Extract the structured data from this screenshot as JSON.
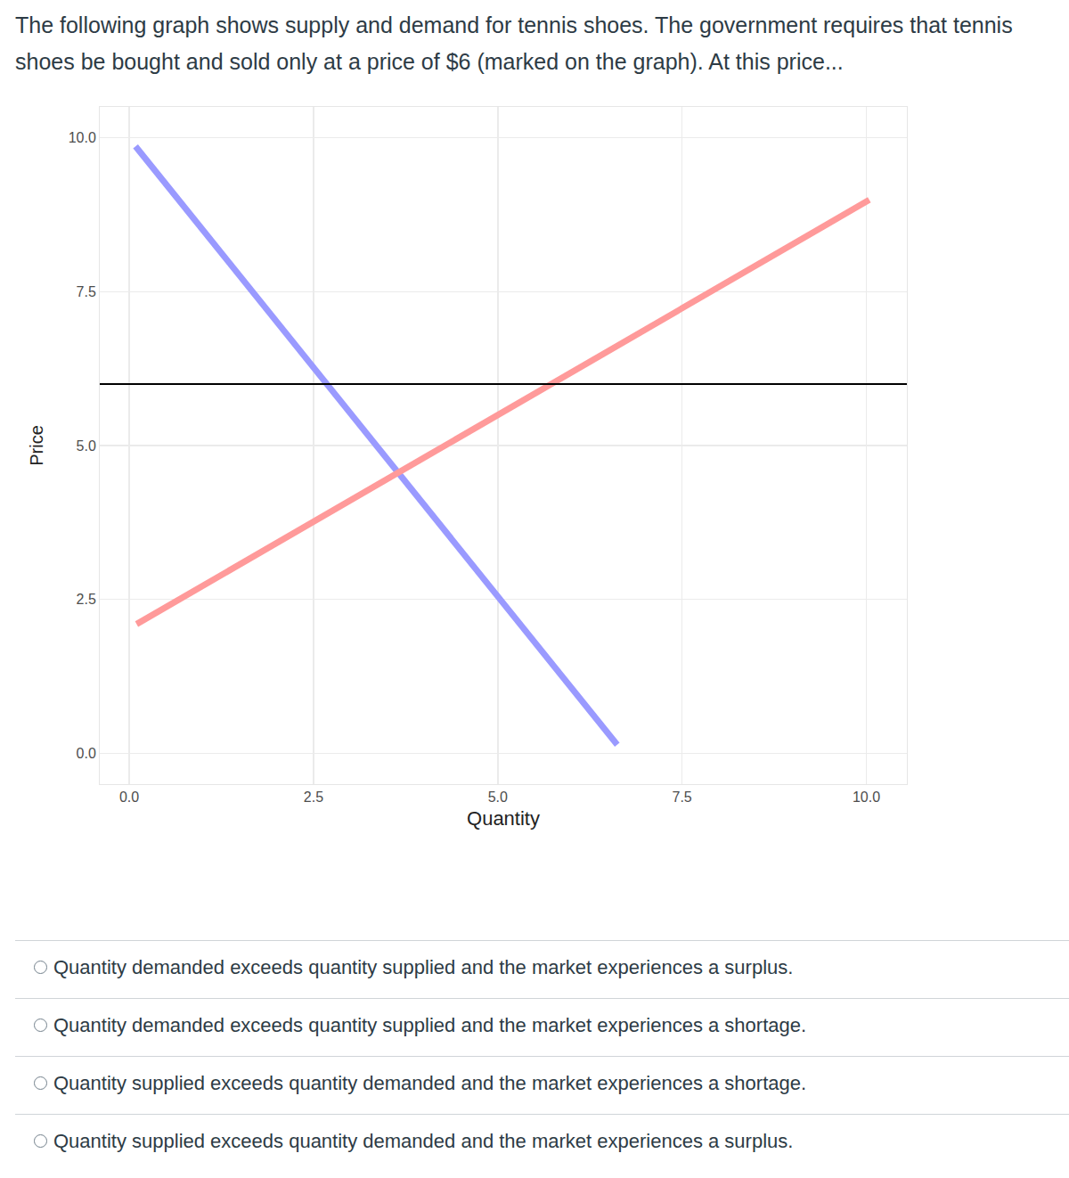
{
  "question": "The following graph shows supply and demand for tennis shoes. The government requires that tennis shoes be bought and sold only at a price of $6 (marked on the graph). At this price...",
  "chart_data": {
    "type": "line",
    "x_label": "Quantity",
    "y_label": "Price",
    "series": [
      {
        "color": "#9a9aff",
        "x": [
          0.085,
          6.62
        ],
        "values": [
          9.86,
          0.14
        ]
      },
      {
        "color": "#ff9a9a",
        "x": [
          0.1,
          10.04
        ],
        "values": [
          2.1,
          8.99
        ]
      },
      {
        "color": "#000000",
        "x": [
          -0.4,
          10.55
        ],
        "values": [
          6,
          6
        ]
      }
    ],
    "xlim": [
      -0.4,
      10.55
    ],
    "ylim": [
      -0.5,
      10.5
    ],
    "xticks": [
      {
        "value": 0,
        "label": "0.0"
      },
      2.5,
      {
        "value": 5,
        "label": "5.0"
      },
      7.5,
      {
        "value": 10,
        "label": "10.0"
      }
    ],
    "yticks": [
      {
        "value": 0,
        "label": "0.0"
      },
      2.5,
      {
        "value": 5,
        "label": "5.0"
      },
      7.5,
      {
        "value": 10,
        "label": "10.0"
      }
    ],
    "grid": true
  },
  "options": [
    "Quantity demanded exceeds quantity supplied and the market experiences a surplus.",
    "Quantity demanded exceeds quantity supplied and the market experiences a shortage.",
    "Quantity supplied exceeds quantity demanded and the market experiences a shortage.",
    "Quantity supplied exceeds quantity demanded and the market experiences a surplus."
  ]
}
